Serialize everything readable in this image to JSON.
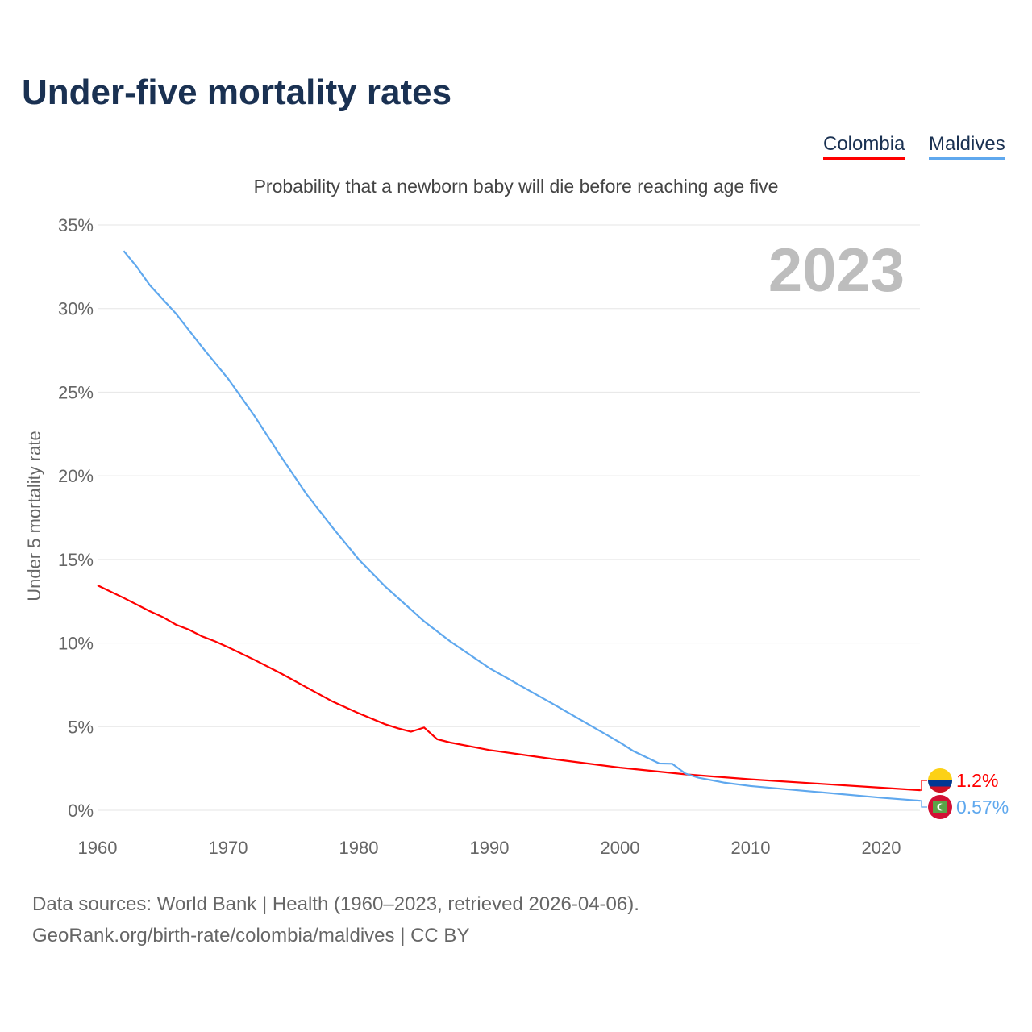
{
  "title": "Under-five mortality rates",
  "subtitle": "Probability that a newborn baby will die before reaching age five",
  "year_label": "2023",
  "legend": [
    {
      "name": "Colombia",
      "color": "#ff0000"
    },
    {
      "name": "Maldives",
      "color": "#5fa8ee"
    }
  ],
  "footer": {
    "line1": "Data sources: World Bank | Health (1960–2023, retrieved 2026-04-06).",
    "line2": "GeoRank.org/birth-rate/colombia/maldives | CC BY"
  },
  "chart_data": {
    "type": "line",
    "title": "Under-five mortality rates",
    "ylabel": "Under 5 mortality rate",
    "xlabel": "",
    "xlim": [
      1960,
      2023
    ],
    "ylim": [
      0,
      35
    ],
    "xticks": [
      1960,
      1970,
      1980,
      1990,
      2000,
      2010,
      2020
    ],
    "yticks": [
      0,
      5,
      10,
      15,
      20,
      25,
      30,
      35
    ],
    "ytick_labels": [
      "0%",
      "5%",
      "10%",
      "15%",
      "20%",
      "25%",
      "30%",
      "35%"
    ],
    "series": [
      {
        "name": "Colombia",
        "color": "#ff0000",
        "end_label": "1.2%",
        "points": [
          [
            1960,
            13.45
          ],
          [
            1962,
            12.7
          ],
          [
            1964,
            11.9
          ],
          [
            1965,
            11.55
          ],
          [
            1966,
            11.1
          ],
          [
            1967,
            10.8
          ],
          [
            1968,
            10.4
          ],
          [
            1969,
            10.1
          ],
          [
            1970,
            9.75
          ],
          [
            1972,
            9.0
          ],
          [
            1974,
            8.2
          ],
          [
            1976,
            7.35
          ],
          [
            1978,
            6.5
          ],
          [
            1980,
            5.8
          ],
          [
            1982,
            5.15
          ],
          [
            1983,
            4.9
          ],
          [
            1984,
            4.7
          ],
          [
            1985,
            4.95
          ],
          [
            1986,
            4.25
          ],
          [
            1987,
            4.05
          ],
          [
            1990,
            3.6
          ],
          [
            1995,
            3.05
          ],
          [
            2000,
            2.55
          ],
          [
            2005,
            2.15
          ],
          [
            2010,
            1.85
          ],
          [
            2015,
            1.6
          ],
          [
            2020,
            1.35
          ],
          [
            2023,
            1.2
          ]
        ]
      },
      {
        "name": "Maldives",
        "color": "#5fa8ee",
        "end_label": "0.57%",
        "points": [
          [
            1962,
            33.45
          ],
          [
            1963,
            32.5
          ],
          [
            1964,
            31.4
          ],
          [
            1966,
            29.7
          ],
          [
            1968,
            27.7
          ],
          [
            1970,
            25.8
          ],
          [
            1972,
            23.6
          ],
          [
            1974,
            21.2
          ],
          [
            1976,
            18.9
          ],
          [
            1978,
            16.9
          ],
          [
            1980,
            15.0
          ],
          [
            1982,
            13.4
          ],
          [
            1984,
            12.0
          ],
          [
            1985,
            11.3
          ],
          [
            1987,
            10.1
          ],
          [
            1990,
            8.5
          ],
          [
            1995,
            6.3
          ],
          [
            2000,
            4.05
          ],
          [
            2001,
            3.55
          ],
          [
            2003,
            2.8
          ],
          [
            2004,
            2.78
          ],
          [
            2005,
            2.2
          ],
          [
            2006,
            1.95
          ],
          [
            2008,
            1.65
          ],
          [
            2010,
            1.45
          ],
          [
            2015,
            1.1
          ],
          [
            2020,
            0.75
          ],
          [
            2023,
            0.57
          ]
        ]
      }
    ]
  }
}
